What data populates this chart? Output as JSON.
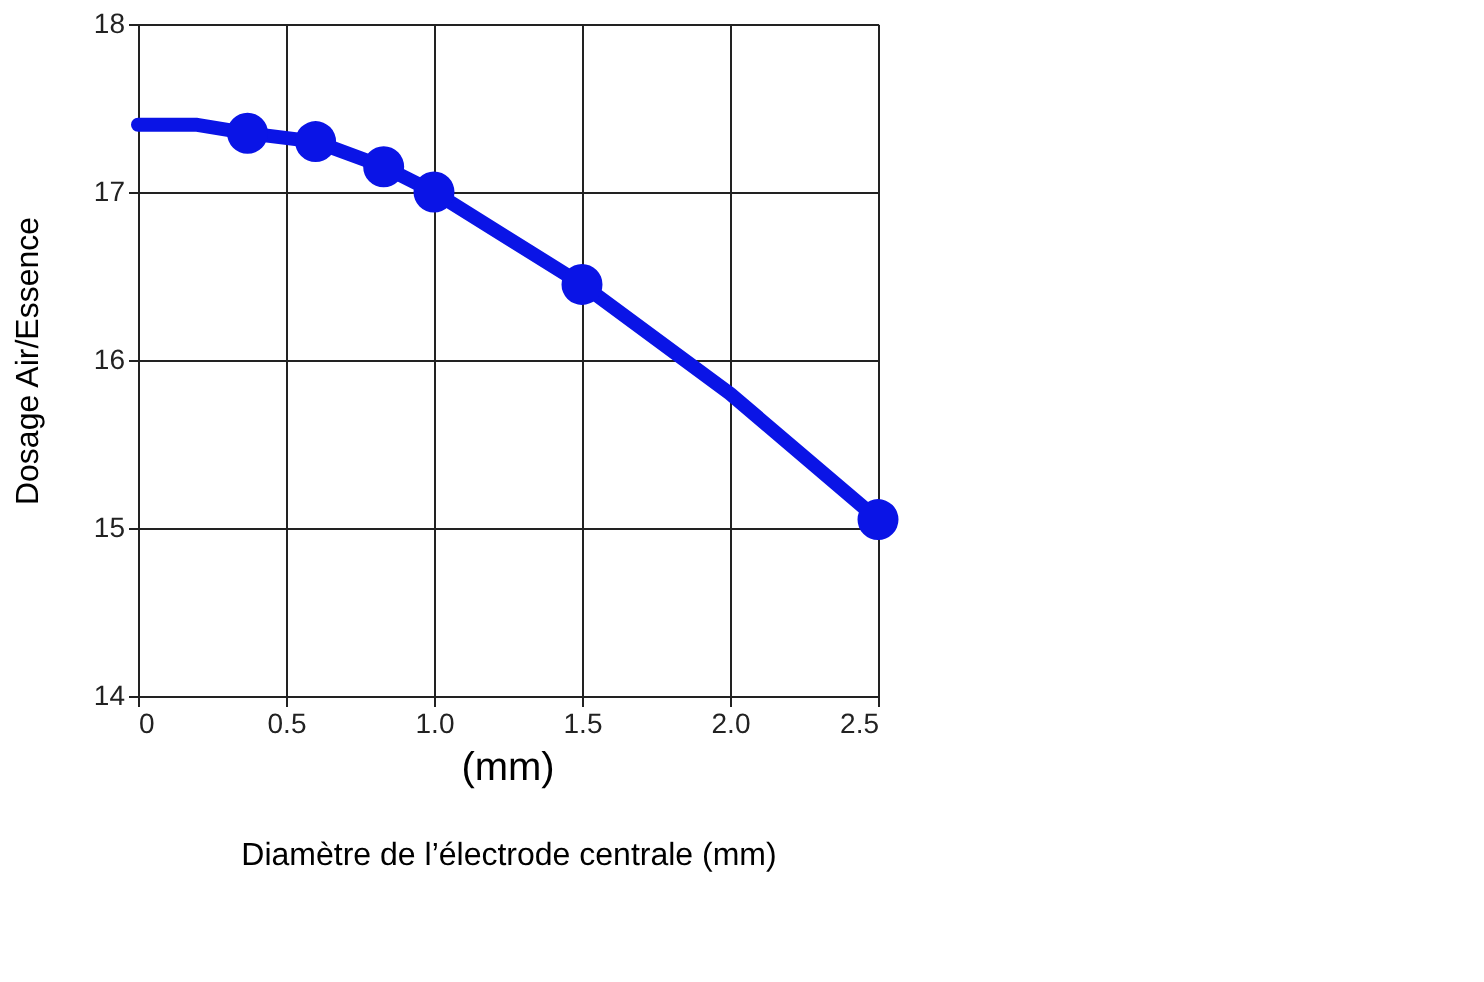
{
  "chart_data": {
    "type": "line",
    "xlabel": "Diamètre de l’électrode centrale (mm)",
    "ylabel": "Dosage Air/Essence",
    "annotations": [
      "(mm)"
    ],
    "xlim": [
      0,
      2.5
    ],
    "xticks": [
      0,
      0.5,
      {
        "value": 1,
        "label": "1.0"
      },
      1.5,
      {
        "value": 2,
        "label": "2.0"
      },
      2.5
    ],
    "ylim": [
      14,
      18
    ],
    "yticks": [
      14,
      15,
      16,
      17,
      18
    ],
    "grid": true,
    "series": [
      {
        "color": "#0a14e6",
        "marker": "none",
        "x": [
          0,
          0.2,
          0.37,
          0.6,
          0.83,
          1.0,
          1.5,
          2.0,
          2.5
        ],
        "values": [
          17.4,
          17.4,
          17.35,
          17.3,
          17.15,
          17.0,
          16.45,
          15.8,
          15.05
        ]
      },
      {
        "type": "scatter",
        "color": "#0a14e6",
        "marker": "circle",
        "x": [
          0.37,
          0.6,
          0.83,
          1.0,
          1.5,
          2.5
        ],
        "values": [
          17.35,
          17.3,
          17.15,
          17.0,
          16.45,
          15.05
        ]
      }
    ]
  }
}
